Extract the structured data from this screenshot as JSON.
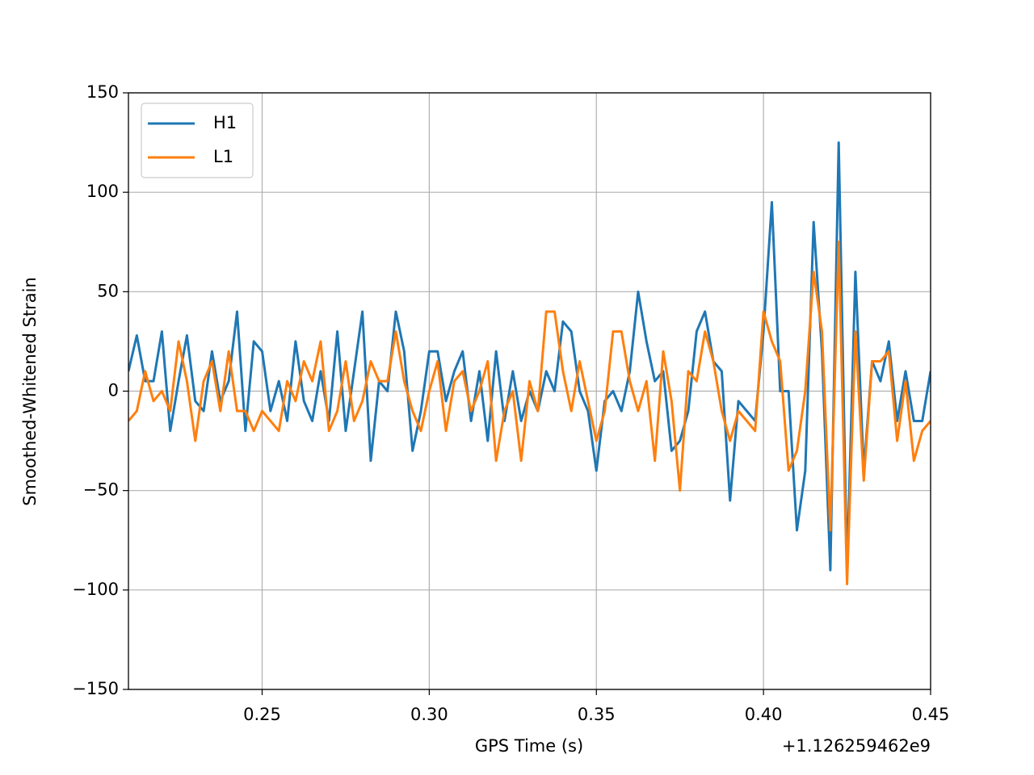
{
  "chart_data": {
    "type": "line",
    "xlabel": "GPS Time (s)",
    "ylabel": "Smoothed-Whitened Strain",
    "x_offset_label": "+1.126259462e9",
    "x": [
      0.21,
      0.2125,
      0.215,
      0.2175,
      0.22,
      0.2225,
      0.225,
      0.2275,
      0.23,
      0.2325,
      0.235,
      0.2375,
      0.24,
      0.2425,
      0.245,
      0.2475,
      0.25,
      0.2525,
      0.255,
      0.2575,
      0.26,
      0.2625,
      0.265,
      0.2675,
      0.27,
      0.2725,
      0.275,
      0.2775,
      0.28,
      0.2825,
      0.285,
      0.2875,
      0.29,
      0.2925,
      0.295,
      0.2975,
      0.3,
      0.3025,
      0.305,
      0.3075,
      0.31,
      0.3125,
      0.315,
      0.3175,
      0.32,
      0.3225,
      0.325,
      0.3275,
      0.33,
      0.3325,
      0.335,
      0.3375,
      0.34,
      0.3425,
      0.345,
      0.3475,
      0.35,
      0.3525,
      0.355,
      0.3575,
      0.36,
      0.3625,
      0.365,
      0.3675,
      0.37,
      0.3725,
      0.375,
      0.3775,
      0.38,
      0.3825,
      0.385,
      0.3875,
      0.39,
      0.3925,
      0.395,
      0.3975,
      0.4,
      0.4025,
      0.405,
      0.4075,
      0.41,
      0.4125,
      0.415,
      0.4175,
      0.42,
      0.4225,
      0.425,
      0.4275,
      0.43,
      0.4325,
      0.435,
      0.4375,
      0.44,
      0.4425,
      0.445,
      0.4475,
      0.45
    ],
    "series": [
      {
        "name": "H1",
        "color": "#1f77b4",
        "values": [
          10,
          28,
          5,
          5,
          30,
          -20,
          5,
          28,
          -5,
          -10,
          20,
          -5,
          5,
          40,
          -20,
          25,
          20,
          -10,
          5,
          -15,
          25,
          -5,
          -15,
          10,
          -15,
          30,
          -20,
          10,
          40,
          -35,
          5,
          0,
          40,
          20,
          -30,
          -10,
          20,
          20,
          -5,
          10,
          20,
          -15,
          10,
          -25,
          20,
          -15,
          10,
          -15,
          0,
          -10,
          10,
          0,
          35,
          30,
          0,
          -10,
          -40,
          -5,
          0,
          -10,
          10,
          50,
          25,
          5,
          10,
          -30,
          -25,
          -10,
          30,
          40,
          15,
          10,
          -55,
          -5,
          -10,
          -15,
          30,
          95,
          0,
          0,
          -70,
          -40,
          85,
          20,
          -90,
          125,
          -90,
          60,
          -40,
          15,
          5,
          25,
          -15,
          10,
          -15,
          -15,
          10
        ]
      },
      {
        "name": "L1",
        "color": "#ff7f0e",
        "values": [
          -15,
          -10,
          10,
          -5,
          0,
          -10,
          25,
          5,
          -25,
          5,
          15,
          -10,
          20,
          -10,
          -10,
          -20,
          -10,
          -15,
          -20,
          5,
          -5,
          15,
          5,
          25,
          -20,
          -10,
          15,
          -15,
          -5,
          15,
          5,
          5,
          30,
          5,
          -10,
          -20,
          0,
          15,
          -20,
          5,
          10,
          -10,
          0,
          15,
          -35,
          -10,
          0,
          -35,
          5,
          -10,
          40,
          40,
          10,
          -10,
          15,
          -5,
          -25,
          -10,
          30,
          30,
          5,
          -10,
          5,
          -35,
          20,
          -5,
          -50,
          10,
          5,
          30,
          15,
          -10,
          -25,
          -10,
          -15,
          -20,
          40,
          25,
          15,
          -40,
          -30,
          0,
          60,
          30,
          -70,
          75,
          -97,
          30,
          -45,
          15,
          15,
          20,
          -25,
          5,
          -35,
          -20,
          -15
        ]
      }
    ],
    "xlim": [
      0.21,
      0.45
    ],
    "xticks": [
      0.25,
      {
        "value": 0.3,
        "label": "0.30"
      },
      0.35,
      {
        "value": 0.4,
        "label": "0.40"
      },
      0.45
    ],
    "ylim": [
      -150,
      150
    ],
    "yticks": [
      {
        "value": -150,
        "label": "−150"
      },
      {
        "value": -100,
        "label": "−100"
      },
      {
        "value": -50,
        "label": "−50"
      },
      0,
      50,
      100,
      150
    ],
    "grid": true,
    "legend": "upper left"
  }
}
